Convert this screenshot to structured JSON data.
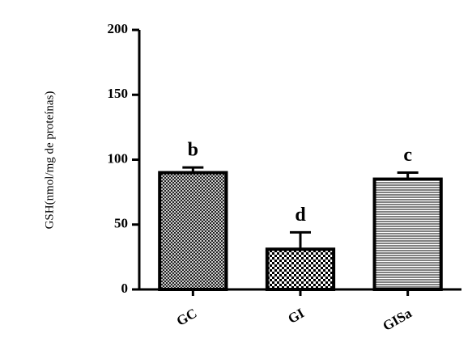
{
  "chart_data": {
    "type": "bar",
    "y_label": "GSH(nmol/mg de proteínas)",
    "categories": [
      "GC",
      "GI",
      "GISa"
    ],
    "values": [
      90,
      31,
      85
    ],
    "errors": [
      4,
      13,
      5
    ],
    "annotations": [
      "b",
      "d",
      "c"
    ],
    "patterns": [
      "crosshatch",
      "checker",
      "hlines"
    ],
    "color": "#000000",
    "ylim": [
      0,
      200
    ],
    "yticks": [
      0,
      50,
      100,
      150,
      200
    ],
    "grid": false
  }
}
